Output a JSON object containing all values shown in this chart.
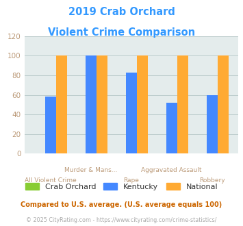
{
  "title_line1": "2019 Crab Orchard",
  "title_line2": "Violent Crime Comparison",
  "title_color": "#3399ff",
  "crab_orchard": [
    0,
    0,
    0,
    0,
    0
  ],
  "kentucky": [
    58,
    100,
    83,
    52,
    60
  ],
  "national": [
    100,
    100,
    100,
    100,
    100
  ],
  "bar_colors": {
    "crab_orchard": "#88cc33",
    "kentucky": "#4488ff",
    "national": "#ffaa33"
  },
  "ylim": [
    0,
    120
  ],
  "yticks": [
    0,
    20,
    40,
    60,
    80,
    100,
    120
  ],
  "grid_color": "#bbcccc",
  "bg_color": "#e4ecec",
  "legend_labels": [
    "Crab Orchard",
    "Kentucky",
    "National"
  ],
  "footnote1": "Compared to U.S. average. (U.S. average equals 100)",
  "footnote1_color": "#cc6600",
  "footnote2": "© 2025 CityRating.com - https://www.cityrating.com/crime-statistics/",
  "footnote2_color": "#aaaaaa",
  "tick_label_color": "#bb9977",
  "top_labels": [
    "",
    "Murder & Mans...",
    "",
    "Aggravated Assault",
    ""
  ],
  "bottom_labels": [
    "All Violent Crime",
    "",
    "Rape",
    "",
    "Robbery"
  ]
}
